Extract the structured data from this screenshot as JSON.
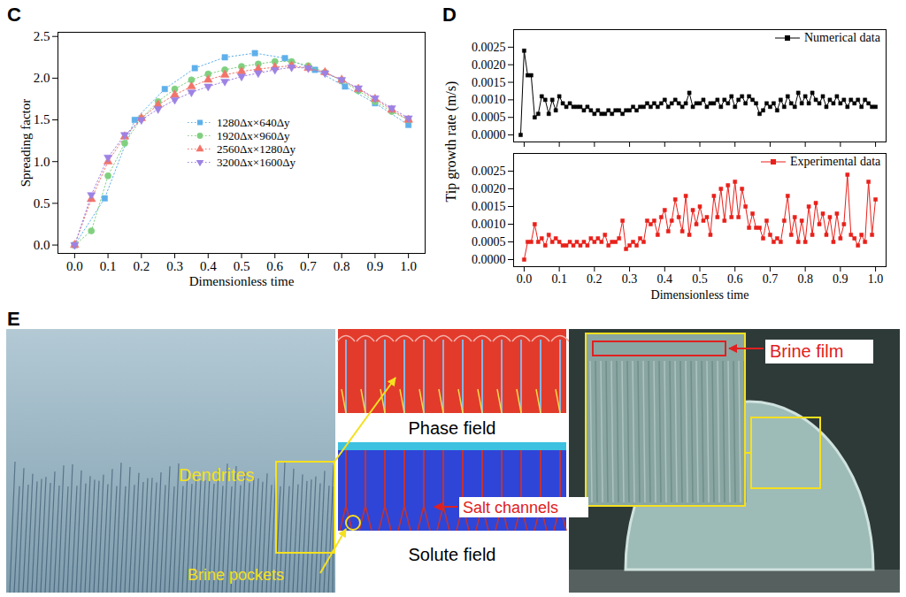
{
  "chart_data": [
    {
      "panel": "C",
      "type": "line",
      "xlabel": "Dimensionless time",
      "ylabel": "Spreading factor",
      "xlim": [
        -0.05,
        1.05
      ],
      "xticks": [
        {
          "value": 0,
          "label": "0.0"
        },
        0.1,
        0.2,
        0.3,
        0.4,
        0.5,
        0.6,
        0.7,
        0.8,
        0.9,
        {
          "value": 1,
          "label": "1.0"
        }
      ],
      "ylim": [
        -0.1,
        2.55
      ],
      "yticks": [
        {
          "value": 0,
          "label": "0.0"
        },
        0.5,
        {
          "value": 1,
          "label": "1.0"
        },
        1.5,
        {
          "value": 2,
          "label": "2.0"
        },
        2.5
      ],
      "grid": false,
      "legend": "center",
      "series": [
        {
          "name": "1280Δx×640Δy",
          "color": "#5fb0ea",
          "marker": "square",
          "line_style": "dotted",
          "x": [
            0,
            0.09,
            0.18,
            0.27,
            0.36,
            0.45,
            0.54,
            0.63,
            0.72,
            0.81,
            0.9,
            1
          ],
          "values": [
            0,
            0.56,
            1.5,
            1.87,
            2.12,
            2.25,
            2.3,
            2.24,
            2.1,
            1.9,
            1.7,
            1.44
          ]
        },
        {
          "name": "1920Δx×960Δy",
          "color": "#80d080",
          "marker": "circle",
          "line_style": "dotted",
          "x": [
            0,
            0.05,
            0.1,
            0.15,
            0.2,
            0.25,
            0.3,
            0.35,
            0.4,
            0.45,
            0.5,
            0.55,
            0.6,
            0.65,
            0.7,
            0.75,
            0.8,
            0.85,
            0.9,
            0.95,
            1
          ],
          "values": [
            0,
            0.17,
            0.83,
            1.22,
            1.52,
            1.72,
            1.87,
            1.98,
            2.05,
            2.1,
            2.14,
            2.17,
            2.2,
            2.2,
            2.15,
            2.07,
            1.97,
            1.85,
            1.72,
            1.6,
            1.5
          ]
        },
        {
          "name": "2560Δx×1280Δy",
          "color": "#f2746a",
          "marker": "triangle",
          "line_style": "dotted",
          "x": [
            0,
            0.05,
            0.1,
            0.15,
            0.2,
            0.25,
            0.3,
            0.35,
            0.4,
            0.45,
            0.5,
            0.55,
            0.6,
            0.65,
            0.7,
            0.75,
            0.8,
            0.85,
            0.9,
            0.95,
            1
          ],
          "values": [
            0,
            0.55,
            1.0,
            1.3,
            1.52,
            1.68,
            1.8,
            1.9,
            1.98,
            2.04,
            2.08,
            2.11,
            2.13,
            2.15,
            2.12,
            2.07,
            1.98,
            1.87,
            1.75,
            1.62,
            1.5
          ]
        },
        {
          "name": "3200Δx×1600Δy",
          "color": "#9d82e4",
          "marker": "triangle-down",
          "line_style": "dotted",
          "x": [
            0,
            0.05,
            0.1,
            0.15,
            0.2,
            0.25,
            0.3,
            0.35,
            0.4,
            0.45,
            0.5,
            0.55,
            0.6,
            0.65,
            0.7,
            0.75,
            0.8,
            0.85,
            0.9,
            0.95,
            1
          ],
          "values": [
            0,
            0.6,
            1.05,
            1.32,
            1.5,
            1.63,
            1.74,
            1.83,
            1.9,
            1.96,
            2.02,
            2.06,
            2.1,
            2.13,
            2.12,
            2.06,
            1.98,
            1.88,
            1.76,
            1.64,
            1.52
          ]
        }
      ]
    },
    {
      "panel": "D",
      "type": "line",
      "ylabel": "Tip growth rate (m/s)",
      "xlim": [
        -0.03,
        1.03
      ],
      "xticks": [
        {
          "value": 0,
          "label": "0.0"
        },
        0.1,
        0.2,
        0.3,
        0.4,
        0.5,
        0.6,
        0.7,
        0.8,
        0.9,
        {
          "value": 1,
          "label": "1.0"
        }
      ],
      "ylim": [
        -0.0002,
        0.003
      ],
      "yticks": [
        {
          "value": 0,
          "label": "0.0000"
        },
        0.0005,
        {
          "value": 0.001,
          "label": "0.0010"
        },
        0.0015,
        {
          "value": 0.002,
          "label": "0.0020"
        },
        0.0025
      ],
      "tick_labels": "y",
      "grid": false,
      "legend": "top right",
      "series": [
        {
          "name": "Numerical data",
          "color": "#000000",
          "marker": "square",
          "line_style": "solid",
          "x": [
            -0.01,
            0,
            0.01,
            0.02,
            0.03,
            0.04,
            0.05,
            0.06,
            0.07,
            0.08,
            0.09,
            0.1,
            0.11,
            0.12,
            0.13,
            0.14,
            0.15,
            0.16,
            0.17,
            0.18,
            0.19,
            0.2,
            0.21,
            0.22,
            0.23,
            0.24,
            0.25,
            0.26,
            0.27,
            0.28,
            0.29,
            0.3,
            0.31,
            0.32,
            0.33,
            0.34,
            0.35,
            0.36,
            0.37,
            0.38,
            0.39,
            0.4,
            0.41,
            0.42,
            0.43,
            0.44,
            0.45,
            0.46,
            0.47,
            0.48,
            0.49,
            0.5,
            0.51,
            0.52,
            0.53,
            0.54,
            0.55,
            0.56,
            0.57,
            0.58,
            0.59,
            0.6,
            0.61,
            0.62,
            0.63,
            0.64,
            0.65,
            0.66,
            0.67,
            0.68,
            0.69,
            0.7,
            0.71,
            0.72,
            0.73,
            0.74,
            0.75,
            0.76,
            0.77,
            0.78,
            0.79,
            0.8,
            0.81,
            0.82,
            0.83,
            0.84,
            0.85,
            0.86,
            0.87,
            0.88,
            0.89,
            0.9,
            0.91,
            0.92,
            0.93,
            0.94,
            0.95,
            0.96,
            0.97,
            0.98,
            0.99,
            1
          ],
          "values": [
            0,
            0.0024,
            0.0017,
            0.0017,
            0.0005,
            0.0006,
            0.0011,
            0.001,
            0.0006,
            0.001,
            0.0007,
            0.0011,
            0.0009,
            0.0008,
            0.0009,
            0.0008,
            0.0008,
            0.0008,
            0.0007,
            0.0008,
            0.0007,
            0.0006,
            0.0007,
            0.0006,
            0.0006,
            0.0007,
            0.0006,
            0.0007,
            0.0007,
            0.0006,
            0.0007,
            0.0007,
            0.0008,
            0.0007,
            0.0008,
            0.0008,
            0.0009,
            0.0008,
            0.0009,
            0.0008,
            0.0009,
            0.001,
            0.0008,
            0.0009,
            0.001,
            0.0009,
            0.0008,
            0.0009,
            0.0012,
            0.0008,
            0.0009,
            0.0009,
            0.001,
            0.0008,
            0.0009,
            0.0009,
            0.001,
            0.0008,
            0.001,
            0.0009,
            0.0011,
            0.0008,
            0.001,
            0.0011,
            0.0009,
            0.0011,
            0.001,
            0.0009,
            0.0006,
            0.0007,
            0.0009,
            0.0008,
            0.0009,
            0.0007,
            0.001,
            0.0008,
            0.0011,
            0.0009,
            0.0008,
            0.0012,
            0.0009,
            0.0011,
            0.0009,
            0.0012,
            0.001,
            0.0009,
            0.0011,
            0.0008,
            0.001,
            0.0009,
            0.0011,
            0.0009,
            0.001,
            0.0008,
            0.001,
            0.0009,
            0.001,
            0.0008,
            0.001,
            0.0009,
            0.0008,
            0.0008
          ]
        }
      ]
    },
    {
      "type": "line",
      "xlabel": "Dimensionless time",
      "xlim": [
        -0.03,
        1.03
      ],
      "xticks": [
        {
          "value": 0,
          "label": "0.0"
        },
        0.1,
        0.2,
        0.3,
        0.4,
        0.5,
        0.6,
        0.7,
        0.8,
        0.9,
        {
          "value": 1,
          "label": "1.0"
        }
      ],
      "ylim": [
        -0.0002,
        0.003
      ],
      "yticks": [
        {
          "value": 0,
          "label": "0.0000"
        },
        0.0005,
        {
          "value": 0.001,
          "label": "0.0010"
        },
        0.0015,
        {
          "value": 0.002,
          "label": "0.0020"
        },
        0.0025
      ],
      "grid": false,
      "legend": "top right",
      "series": [
        {
          "name": "Experimental data",
          "color": "#e8201a",
          "marker": "square",
          "line_style": "solid",
          "x": [
            0,
            0.01,
            0.02,
            0.03,
            0.04,
            0.05,
            0.06,
            0.07,
            0.08,
            0.09,
            0.1,
            0.11,
            0.12,
            0.13,
            0.14,
            0.15,
            0.16,
            0.17,
            0.18,
            0.19,
            0.2,
            0.21,
            0.22,
            0.23,
            0.24,
            0.25,
            0.26,
            0.27,
            0.28,
            0.29,
            0.3,
            0.31,
            0.32,
            0.33,
            0.34,
            0.35,
            0.36,
            0.37,
            0.38,
            0.39,
            0.4,
            0.41,
            0.42,
            0.43,
            0.44,
            0.45,
            0.46,
            0.47,
            0.48,
            0.49,
            0.5,
            0.51,
            0.52,
            0.53,
            0.54,
            0.55,
            0.56,
            0.57,
            0.58,
            0.59,
            0.6,
            0.61,
            0.62,
            0.63,
            0.64,
            0.65,
            0.66,
            0.67,
            0.68,
            0.69,
            0.7,
            0.71,
            0.72,
            0.73,
            0.74,
            0.75,
            0.76,
            0.77,
            0.78,
            0.79,
            0.8,
            0.81,
            0.82,
            0.83,
            0.84,
            0.85,
            0.86,
            0.87,
            0.88,
            0.89,
            0.9,
            0.91,
            0.92,
            0.93,
            0.94,
            0.95,
            0.96,
            0.97,
            0.98,
            0.99,
            1
          ],
          "values": [
            0,
            0.0005,
            0.0005,
            0.001,
            0.0005,
            0.0006,
            0.0004,
            0.0007,
            0.0005,
            0.0006,
            0.0005,
            0.0004,
            0.0004,
            0.0005,
            0.0004,
            0.0005,
            0.0004,
            0.0005,
            0.0004,
            0.0006,
            0.0005,
            0.0006,
            0.0005,
            0.0007,
            0.0004,
            0.0005,
            0.0005,
            0.0006,
            0.0011,
            0.0003,
            0.0004,
            0.0005,
            0.0004,
            0.0006,
            0.0005,
            0.0011,
            0.001,
            0.0011,
            0.0007,
            0.0012,
            0.0014,
            0.0008,
            0.0011,
            0.0017,
            0.0012,
            0.0008,
            0.0018,
            0.0007,
            0.0014,
            0.001,
            0.0015,
            0.0011,
            0.0012,
            0.0007,
            0.0018,
            0.0012,
            0.002,
            0.0011,
            0.0021,
            0.0012,
            0.0022,
            0.0012,
            0.002,
            0.0015,
            0.0009,
            0.0013,
            0.0009,
            0.0009,
            0.0006,
            0.0011,
            0.0007,
            0.0005,
            0.0006,
            0.0005,
            0.0011,
            0.0018,
            0.0007,
            0.0012,
            0.0005,
            0.0011,
            0.0005,
            0.0015,
            0.0007,
            0.0016,
            0.001,
            0.0013,
            0.0007,
            0.0012,
            0.0005,
            0.0013,
            0.0006,
            0.001,
            0.0024,
            0.0007,
            0.0006,
            0.0004,
            0.0007,
            0.0005,
            0.0022,
            0.0007,
            0.0017
          ]
        }
      ]
    }
  ],
  "panel_e": {
    "panel": "E",
    "labels": {
      "dendrites": "Dendrites",
      "brine_pockets": "Brine pockets",
      "phase_field": "Phase field",
      "solute_field": "Solute field",
      "salt_channels": "Salt channels",
      "brine_film": "Brine film"
    }
  }
}
